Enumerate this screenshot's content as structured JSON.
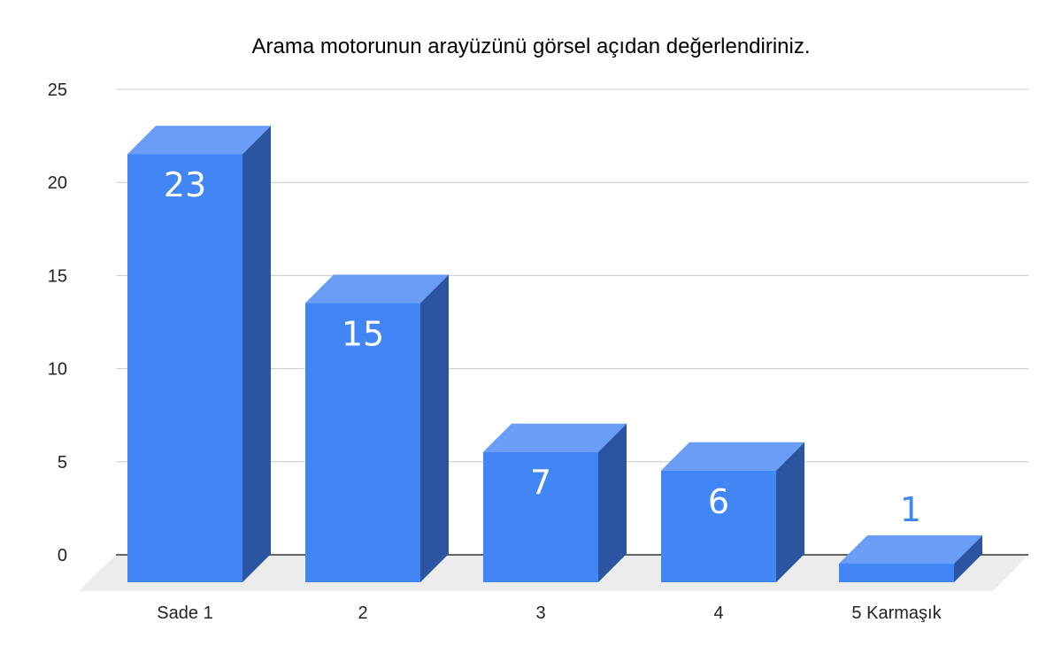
{
  "chart_data": {
    "type": "bar",
    "title": "Arama motorunun arayüzünü görsel açıdan değerlendiriniz.",
    "categories": [
      "Sade 1",
      "2",
      "3",
      "4",
      "5 Karmaşık"
    ],
    "values": [
      23,
      15,
      7,
      6,
      1
    ],
    "data_labels": [
      "23",
      "15",
      "7",
      "6",
      "1"
    ],
    "ylim": [
      0,
      25
    ],
    "yticks": [
      0,
      5,
      10,
      15,
      20,
      25
    ],
    "ytick_labels": [
      "0",
      "5",
      "10",
      "15",
      "20",
      "25"
    ],
    "grid": true,
    "legend": "none",
    "style": "3d",
    "colors": {
      "front": "#4285f4",
      "top": "#6a9df6",
      "side": "#2b55a1",
      "floor": "#ececec",
      "grid": "#cccccc",
      "axis": "#333333"
    }
  }
}
